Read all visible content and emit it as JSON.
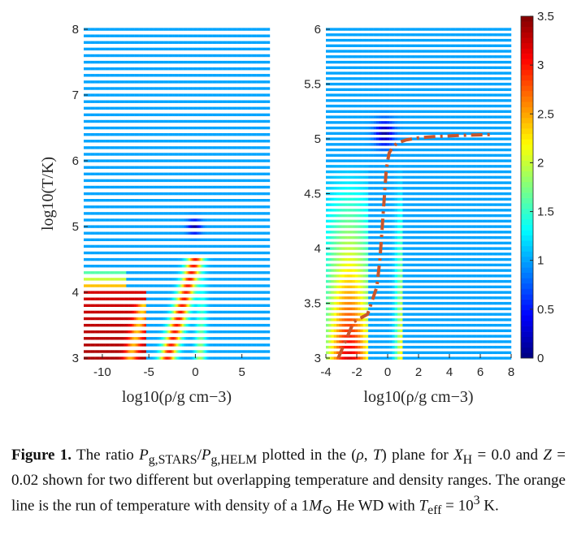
{
  "chart_data": [
    {
      "type": "heatmap",
      "xlabel": "log10(ρ/g cm−3)",
      "ylabel": "log10(T/K)",
      "xlim": [
        -12,
        8
      ],
      "ylim": [
        3,
        8
      ],
      "xticks": [
        "-10",
        "-5",
        "0",
        "5"
      ],
      "xtick_values": [
        -10,
        -5,
        0,
        5
      ],
      "yticks": [
        "3",
        "4",
        "5",
        "6",
        "7",
        "8"
      ],
      "ytick_values": [
        3,
        4,
        5,
        6,
        7,
        8
      ],
      "grid_rows": 51,
      "grid_cols": 140,
      "regions": {
        "background_ratio": 1.0,
        "low_T_low_rho_ratio": 3.3,
        "ionization_band_peak_ratio": 0.1,
        "ionization_band_location": {
          "log_rho": [
            -1,
            0.5
          ],
          "log_T": [
            4.9,
            5.2
          ]
        }
      }
    },
    {
      "type": "heatmap",
      "xlabel": "log10(ρ/g cm−3)",
      "ylabel": "",
      "xlim": [
        -4,
        8
      ],
      "ylim": [
        3,
        6
      ],
      "xticks": [
        "-4",
        "-2",
        "0",
        "2",
        "4",
        "6",
        "8"
      ],
      "xtick_values": [
        -4,
        -2,
        0,
        2,
        4,
        6,
        8
      ],
      "yticks": [
        "3",
        "3.5",
        "4",
        "4.5",
        "5",
        "5.5",
        "6"
      ],
      "ytick_values": [
        3,
        3.5,
        4,
        4.5,
        5,
        5.5,
        6
      ],
      "grid_rows": 61,
      "grid_cols": 70,
      "overlay_line": {
        "style": "dash-dot",
        "color": "#c9562c",
        "log_rho": [
          -3.2,
          -2.2,
          -1.3,
          -0.7,
          -0.5,
          -0.35,
          -0.2,
          -0.1,
          0.0,
          0.1,
          0.3,
          0.6,
          1.2,
          2.0,
          3.0,
          4.5,
          6.8
        ],
        "log_T": [
          3.0,
          3.33,
          3.4,
          3.65,
          3.9,
          4.2,
          4.5,
          4.7,
          4.8,
          4.87,
          4.92,
          4.96,
          4.99,
          5.01,
          5.02,
          5.03,
          5.04
        ]
      }
    }
  ],
  "colorbar": {
    "min": 0,
    "max": 3.5,
    "ticks": [
      "0",
      "0.5",
      "1",
      "1.5",
      "2",
      "2.5",
      "3",
      "3.5"
    ],
    "tick_values": [
      0,
      0.5,
      1,
      1.5,
      2,
      2.5,
      3,
      3.5
    ],
    "colormap": "jet"
  },
  "caption": {
    "label": "Figure 1.",
    "line1a": " The ratio ",
    "p1": "P",
    "p1sub": "g,STARS",
    "slash": "/",
    "p2": "P",
    "p2sub": "g,HELM",
    "line1b": " plotted in the (",
    "rho": "ρ",
    "comma": ", ",
    "T": "T",
    "line1c": ") plane for ",
    "X": "X",
    "Xsub": "H",
    "line1d": " = 0.0 and ",
    "Z": "Z",
    "line1e": " = 0.02 shown for two different but overlapping temperature and density ranges. The orange line is the run of temperature with density of a 1",
    "M": "M",
    "Msub": "⊙",
    "line1f": " He WD with ",
    "Teff": "T",
    "Teffsub": "eff",
    "line1g": " = 10",
    "exp": "3",
    "line1h": " K."
  }
}
